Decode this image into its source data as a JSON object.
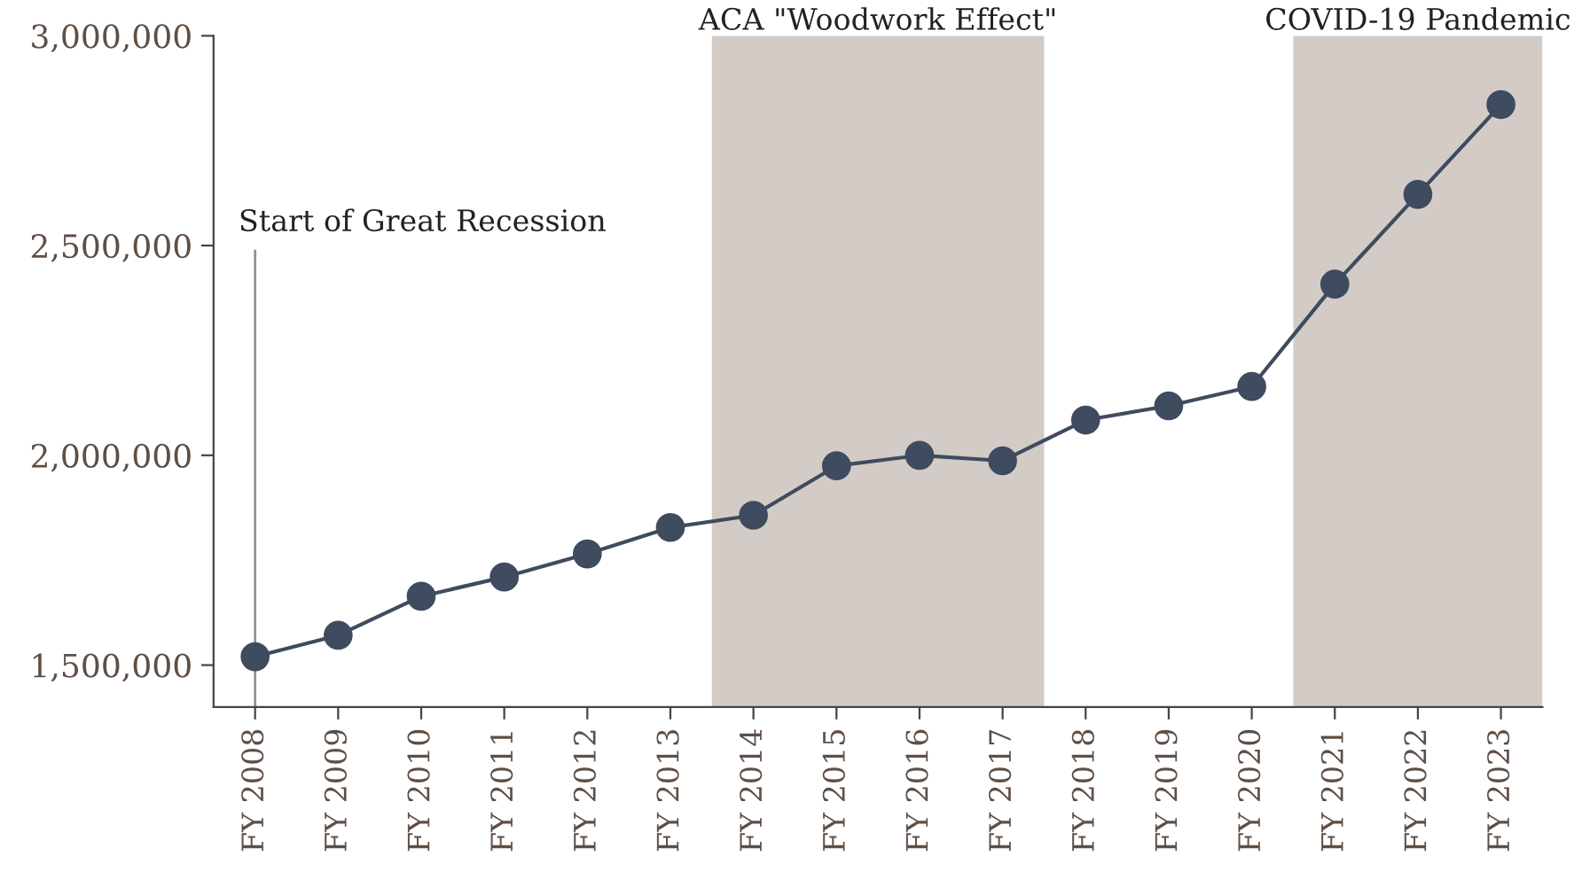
{
  "chart_data": {
    "type": "line",
    "categories": [
      "FY 2008",
      "FY 2009",
      "FY 2010",
      "FY 2011",
      "FY 2012",
      "FY 2013",
      "FY 2014",
      "FY 2015",
      "FY 2016",
      "FY 2017",
      "FY 2018",
      "FY 2019",
      "FY 2020",
      "FY 2021",
      "FY 2022",
      "FY 2023"
    ],
    "series": [
      {
        "color": "#3f4b5e",
        "values": [
          1520000,
          1571000,
          1664000,
          1710000,
          1765000,
          1828000,
          1857000,
          1975000,
          2000000,
          1987000,
          2084000,
          2118000,
          2164000,
          2408000,
          2622000,
          2836000
        ]
      }
    ],
    "ylim": [
      1400000,
      3000000
    ],
    "yticks": [
      {
        "value": 1500000,
        "label": "1,500,000"
      },
      {
        "value": 2000000,
        "label": "2,000,000"
      },
      {
        "value": 2500000,
        "label": "2,500,000"
      },
      {
        "value": 3000000,
        "label": "3,000,000"
      }
    ],
    "marker": "circle",
    "line_style": "solid",
    "grid": false,
    "legend": false,
    "ref_lines": [
      {
        "axis": "x",
        "value": "FY 2008",
        "label": "Start of Great Recession",
        "color": "#9a8f88"
      }
    ],
    "bands": [
      {
        "axis": "x",
        "from": "FY 2014",
        "to": "FY 2017",
        "label": "ACA \"Woodwork Effect\"",
        "color": "#d3cbc6"
      },
      {
        "axis": "x",
        "from": "FY 2021",
        "to": "FY 2023",
        "label": "COVID-19 Pandemic",
        "color": "#d3cbc6"
      }
    ]
  }
}
